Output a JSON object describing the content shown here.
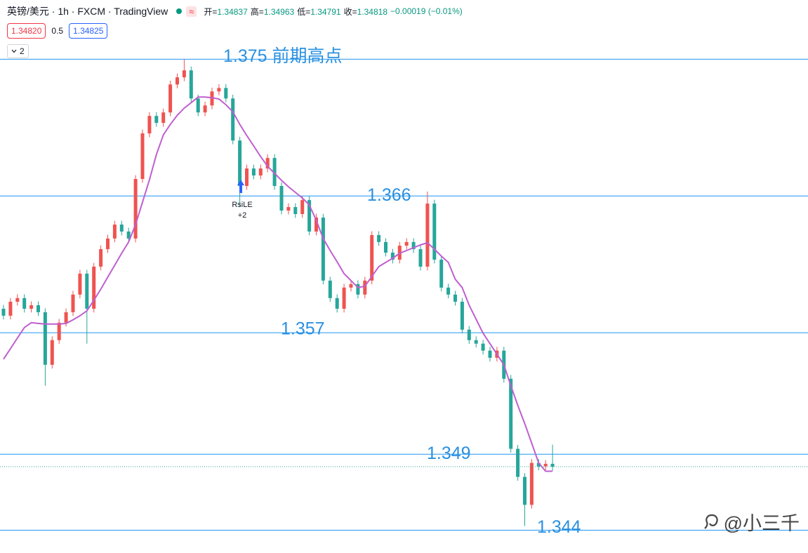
{
  "header": {
    "symbol": "英镑/美元 · 1h · FXCM · TradingView",
    "badge": "≈",
    "ohlc": [
      {
        "label": "开=",
        "value": "1.34837"
      },
      {
        "label": "高=",
        "value": "1.34963"
      },
      {
        "label": "低=",
        "value": "1.34791"
      },
      {
        "label": "收=",
        "value": "1.34818"
      }
    ],
    "change": "−0.00019 (−0.01%)",
    "bid": "1.34820",
    "spread": "0.5",
    "ask": "1.34825",
    "indicator_count": "2"
  },
  "watermark": "@小三千",
  "chart_data": {
    "type": "candlestick",
    "up_color": "#ef5350",
    "down_color": "#26a69a",
    "ylim": [
      1.3425,
      1.3789
    ],
    "open": [
      1.35858,
      1.35812,
      1.35904,
      1.35928,
      1.35858,
      1.35881,
      1.35835,
      1.35489,
      1.35651,
      1.35766,
      1.35835,
      1.35951,
      1.36089,
      1.35858,
      1.36135,
      1.3625,
      1.3632,
      1.36412,
      1.36366,
      1.3632,
      1.36712,
      1.37012,
      1.37127,
      1.37081,
      1.3715,
      1.37334,
      1.37381,
      1.37427,
      1.37242,
      1.3715,
      1.37196,
      1.37288,
      1.37311,
      1.37242,
      1.36965,
      1.36666,
      1.36781,
      1.36735,
      1.36781,
      1.3685,
      1.36666,
      1.36504,
      1.36527,
      1.36481,
      1.36573,
      1.36366,
      1.36458,
      1.36043,
      1.35928,
      1.35858,
      1.35997,
      1.3602,
      1.35951,
      1.36043,
      1.36343,
      1.36297,
      1.36227,
      1.36181,
      1.36273,
      1.36297,
      1.3625,
      1.36135,
      1.3655,
      1.36181,
      1.35997,
      1.35951,
      1.35904,
      1.3572,
      1.35651,
      1.35628,
      1.35582,
      1.35535,
      1.35582,
      1.35397,
      1.34936,
      1.34751,
      1.34567,
      1.34843,
      1.3482,
      1.34837
    ],
    "high": [
      1.35883,
      1.35929,
      1.35953,
      1.35953,
      1.35906,
      1.35906,
      1.3586,
      1.35676,
      1.35791,
      1.3586,
      1.35976,
      1.36114,
      1.36114,
      1.3616,
      1.36275,
      1.36345,
      1.36437,
      1.36437,
      1.36391,
      1.36737,
      1.37037,
      1.37152,
      1.37152,
      1.37175,
      1.37359,
      1.37406,
      1.375,
      1.37452,
      1.37267,
      1.37221,
      1.37313,
      1.37336,
      1.37336,
      1.37267,
      1.3699,
      1.36806,
      1.36806,
      1.36806,
      1.36875,
      1.36875,
      1.36691,
      1.36552,
      1.36552,
      1.36598,
      1.36598,
      1.36483,
      1.36483,
      1.36068,
      1.35953,
      1.36022,
      1.36045,
      1.36045,
      1.36068,
      1.36368,
      1.36368,
      1.36322,
      1.36252,
      1.36298,
      1.36322,
      1.36322,
      1.36275,
      1.36629,
      1.36575,
      1.36206,
      1.36022,
      1.35976,
      1.35929,
      1.35745,
      1.35676,
      1.35653,
      1.35607,
      1.35607,
      1.35607,
      1.35422,
      1.34961,
      1.34776,
      1.34868,
      1.34868,
      1.34862,
      1.34963
    ],
    "low": [
      1.35787,
      1.35787,
      1.35879,
      1.35833,
      1.35833,
      1.3581,
      1.35351,
      1.35464,
      1.35626,
      1.35741,
      1.3581,
      1.35926,
      1.35628,
      1.35833,
      1.3611,
      1.36225,
      1.36295,
      1.36341,
      1.36295,
      1.36295,
      1.36687,
      1.36987,
      1.37056,
      1.37056,
      1.37125,
      1.37309,
      1.37356,
      1.37217,
      1.37125,
      1.37125,
      1.37171,
      1.37263,
      1.37217,
      1.3694,
      1.36527,
      1.36641,
      1.3671,
      1.3671,
      1.36756,
      1.36641,
      1.36479,
      1.36479,
      1.36456,
      1.36456,
      1.36341,
      1.36341,
      1.36018,
      1.35903,
      1.35833,
      1.35833,
      1.35972,
      1.35926,
      1.35926,
      1.36018,
      1.36272,
      1.36202,
      1.36156,
      1.36156,
      1.36248,
      1.36225,
      1.3611,
      1.3611,
      1.36156,
      1.35972,
      1.35926,
      1.35879,
      1.35695,
      1.35626,
      1.35603,
      1.35557,
      1.3551,
      1.3551,
      1.35372,
      1.34911,
      1.34726,
      1.34428,
      1.34542,
      1.34795,
      1.34795,
      1.34791
    ],
    "close": [
      1.35812,
      1.35904,
      1.35928,
      1.35858,
      1.35881,
      1.35835,
      1.35489,
      1.35651,
      1.35766,
      1.35835,
      1.35951,
      1.36089,
      1.35858,
      1.36135,
      1.3625,
      1.3632,
      1.36412,
      1.36366,
      1.3632,
      1.36712,
      1.37012,
      1.37127,
      1.37081,
      1.3715,
      1.37334,
      1.37381,
      1.37427,
      1.37242,
      1.3715,
      1.37196,
      1.37288,
      1.37311,
      1.37242,
      1.36965,
      1.36666,
      1.36781,
      1.36735,
      1.36781,
      1.3685,
      1.36666,
      1.36504,
      1.36527,
      1.36481,
      1.36573,
      1.36366,
      1.36458,
      1.36043,
      1.35928,
      1.35858,
      1.35997,
      1.3602,
      1.35951,
      1.36043,
      1.36343,
      1.36297,
      1.36227,
      1.36181,
      1.36273,
      1.36297,
      1.3625,
      1.36135,
      1.3655,
      1.36181,
      1.35997,
      1.35951,
      1.35904,
      1.3572,
      1.35651,
      1.35628,
      1.35582,
      1.35535,
      1.35582,
      1.35397,
      1.34936,
      1.34751,
      1.34567,
      1.34843,
      1.3482,
      1.34837,
      1.34818
    ],
    "moving_average": {
      "color": "#bf5fcf",
      "values": [
        1.35526,
        1.35595,
        1.35665,
        1.35734,
        1.35766,
        1.35761,
        1.35757,
        1.35757,
        1.35757,
        1.35761,
        1.35785,
        1.35812,
        1.35844,
        1.35914,
        1.35987,
        1.36066,
        1.36144,
        1.36223,
        1.36297,
        1.36412,
        1.36559,
        1.36707,
        1.36873,
        1.37002,
        1.37071,
        1.37131,
        1.37178,
        1.37214,
        1.37251,
        1.37251,
        1.37247,
        1.37238,
        1.37201,
        1.37154,
        1.37071,
        1.36998,
        1.36929,
        1.36859,
        1.36795,
        1.36749,
        1.36703,
        1.36661,
        1.36624,
        1.36587,
        1.36541,
        1.3644,
        1.3632,
        1.36241,
        1.36167,
        1.36089,
        1.36043,
        1.35997,
        1.36006,
        1.36071,
        1.36135,
        1.36163,
        1.3619,
        1.36223,
        1.36241,
        1.3626,
        1.36278,
        1.36292,
        1.3625,
        1.36204,
        1.36163,
        1.36052,
        1.35997,
        1.35881,
        1.35789,
        1.35697,
        1.35628,
        1.35558,
        1.35489,
        1.35351,
        1.35222,
        1.35102,
        1.34973,
        1.34843,
        1.34788,
        1.34788
      ]
    },
    "level_color": "#2196f3",
    "levels": [
      {
        "value": 1.375,
        "label": "1.375 前期高点"
      },
      {
        "value": 1.366,
        "label": "1.366"
      },
      {
        "value": 1.357,
        "label": "1.357"
      },
      {
        "value": 1.349,
        "label": "1.349"
      },
      {
        "value": 1.344,
        "label": "1.344"
      }
    ],
    "last_price_line": true,
    "signal": {
      "name": "RsiLE",
      "quantity": "+2",
      "color": "#2962ff"
    }
  }
}
